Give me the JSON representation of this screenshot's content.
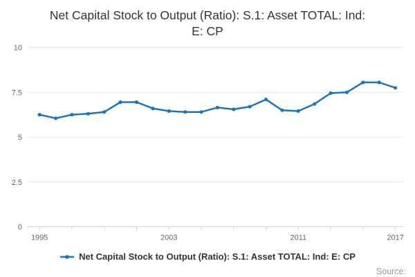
{
  "title": {
    "lines": [
      "Net Capital Stock to Output (Ratio): S.1: Asset TOTAL: Ind:",
      "E: CP"
    ]
  },
  "legend": {
    "label": "Net Capital Stock to Output (Ratio): S.1: Asset TOTAL: Ind: E: CP"
  },
  "source": {
    "label": "Source:"
  },
  "colors": {
    "line": "#1b75bc",
    "grid": "#e6e6e6",
    "axis": "#ccd6eb",
    "tick": "#ccd6eb",
    "axis_label": "#666666",
    "title": "#333333",
    "legend_text": "#333333",
    "source_text": "#999999",
    "background": "#ffffff"
  },
  "chart_data": {
    "type": "line",
    "title": "Net Capital Stock to Output (Ratio): S.1: Asset TOTAL: Ind: E: CP",
    "x": [
      1995,
      1996,
      1997,
      1998,
      1999,
      2000,
      2001,
      2002,
      2003,
      2004,
      2005,
      2006,
      2007,
      2008,
      2009,
      2010,
      2011,
      2012,
      2013,
      2014,
      2015,
      2016,
      2017
    ],
    "series": [
      {
        "name": "Net Capital Stock to Output (Ratio): S.1: Asset TOTAL: Ind: E: CP",
        "values": [
          6.25,
          6.05,
          6.25,
          6.3,
          6.4,
          6.95,
          6.95,
          6.6,
          6.45,
          6.4,
          6.4,
          6.65,
          6.55,
          6.7,
          7.1,
          6.5,
          6.45,
          6.85,
          7.45,
          7.5,
          8.05,
          8.05,
          7.75
        ]
      }
    ],
    "xlabel": "",
    "ylabel": "",
    "ylim": [
      0,
      10
    ],
    "yticks": [
      0,
      2.5,
      5,
      7.5,
      10
    ],
    "ytick_labels": [
      "0",
      "2.5",
      "5",
      "7.5",
      "10"
    ],
    "xtick_interval": 2,
    "xtick_labels": [
      1995,
      2003,
      2011,
      2017
    ],
    "grid": true,
    "legend_position": "bottom",
    "marker": "circle"
  }
}
